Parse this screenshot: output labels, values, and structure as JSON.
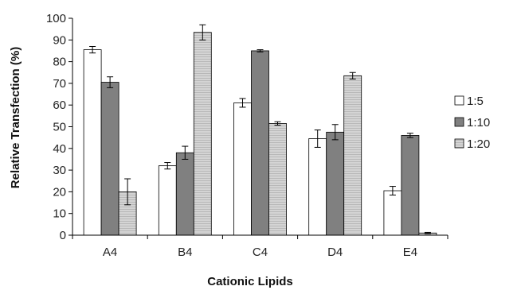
{
  "chart_data": {
    "type": "bar",
    "xlabel": "Cationic Lipids",
    "ylabel": "Relative Transfection (%)",
    "ylim": [
      0,
      100
    ],
    "yticks": [
      0,
      10,
      20,
      30,
      40,
      50,
      60,
      70,
      80,
      90,
      100
    ],
    "categories": [
      "A4",
      "B4",
      "C4",
      "D4",
      "E4"
    ],
    "legend_position": "right",
    "grid": false,
    "series": [
      {
        "name": "1:5",
        "color": "#ffffff",
        "values": [
          85.5,
          32,
          61,
          44.5,
          20.5
        ],
        "errors": [
          1.5,
          1.5,
          2,
          4,
          2
        ]
      },
      {
        "name": "1:10",
        "color": "#808080",
        "values": [
          70.5,
          38,
          85,
          47.5,
          46
        ],
        "errors": [
          2.5,
          3,
          0.5,
          3.5,
          1
        ]
      },
      {
        "name": "1:20",
        "color": "#d0d0d0",
        "values": [
          20,
          93.5,
          51.5,
          73.5,
          1
        ],
        "errors": [
          6,
          3.5,
          0.8,
          1.5,
          0.3
        ]
      }
    ]
  }
}
